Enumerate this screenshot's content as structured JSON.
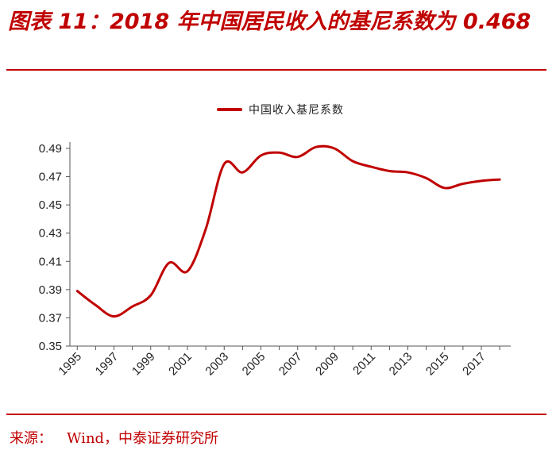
{
  "header": {
    "title": "图表 11：2018 年中国居民收入的基尼系数为 0.468"
  },
  "footer": {
    "source_label": "来源：",
    "source_value": "Wind，中泰证券研究所"
  },
  "colors": {
    "accent": "#c00000",
    "series": "#c00000",
    "axis": "#555555"
  },
  "chart_data": {
    "type": "line",
    "title": "图表 11：2018 年中国居民收入的基尼系数为 0.468",
    "xlabel": "",
    "ylabel": "",
    "legend": [
      "中国收入基尼系数"
    ],
    "legend_position": "top-center",
    "grid": false,
    "ylim": [
      0.35,
      0.49
    ],
    "yticks": [
      0.35,
      0.37,
      0.39,
      0.41,
      0.43,
      0.45,
      0.47,
      0.49
    ],
    "ytick_labels": [
      "0.35",
      "0.37",
      "0.39",
      "0.41",
      "0.43",
      "0.45",
      "0.47",
      "0.49"
    ],
    "xticks": [
      "1995",
      "1997",
      "1999",
      "2001",
      "2003",
      "2005",
      "2007",
      "2009",
      "2011",
      "2013",
      "2015",
      "2017"
    ],
    "series": [
      {
        "name": "中国收入基尼系数",
        "x": [
          1995,
          1996,
          1997,
          1998,
          1999,
          2000,
          2001,
          2002,
          2003,
          2004,
          2005,
          2006,
          2007,
          2008,
          2009,
          2010,
          2011,
          2012,
          2013,
          2014,
          2015,
          2016,
          2017,
          2018
        ],
        "values": [
          0.389,
          0.379,
          0.371,
          0.378,
          0.386,
          0.409,
          0.403,
          0.433,
          0.479,
          0.473,
          0.485,
          0.487,
          0.484,
          0.491,
          0.49,
          0.481,
          0.477,
          0.474,
          0.473,
          0.469,
          0.462,
          0.465,
          0.467,
          0.468
        ]
      }
    ]
  }
}
